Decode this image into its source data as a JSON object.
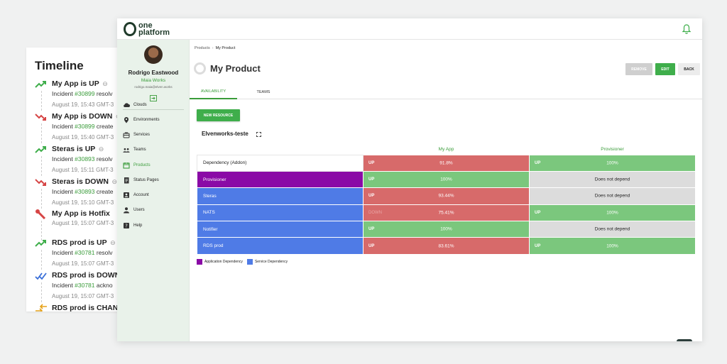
{
  "timeline": {
    "title": "Timeline",
    "items": [
      {
        "title": "My App is UP",
        "incident_prefix": "Incident ",
        "incident": "#30899",
        "incident_suffix": " resolv",
        "date": "August 19, 15:43 GMT-3",
        "kind": "up"
      },
      {
        "title": "My App is DOWN",
        "incident_prefix": "Incident ",
        "incident": "#30899",
        "incident_suffix": " create",
        "date": "August 19, 15:40 GMT-3",
        "kind": "down"
      },
      {
        "title": "Steras is UP",
        "incident_prefix": "Incident ",
        "incident": "#30893",
        "incident_suffix": " resolv",
        "date": "August 19, 15:11 GMT-3",
        "kind": "up"
      },
      {
        "title": "Steras is DOWN",
        "incident_prefix": "Incident ",
        "incident": "#30893",
        "incident_suffix": " create",
        "date": "August 19, 15:10 GMT-3",
        "kind": "down"
      },
      {
        "title": "My App is Hotfix",
        "incident_prefix": "",
        "incident": "",
        "incident_suffix": "",
        "date": "August 19, 15:07 GMT-3",
        "kind": "hotfix"
      },
      {
        "title": "RDS prod is UP",
        "incident_prefix": "Incident ",
        "incident": "#30781",
        "incident_suffix": " resolv",
        "date": "August 19, 15:07 GMT-3",
        "kind": "up"
      },
      {
        "title": "RDS prod is DOWN",
        "incident_prefix": "Incident ",
        "incident": "#30781",
        "incident_suffix": " ackno",
        "date": "August 19, 15:07 GMT-3",
        "kind": "ack"
      },
      {
        "title": "RDS prod is CHANG",
        "incident_prefix": "",
        "incident": "",
        "incident_suffix": "",
        "date": "",
        "kind": "change"
      }
    ]
  },
  "app": {
    "logo_line1": "one",
    "logo_line2": "platform"
  },
  "user": {
    "name": "Rodrigo Eastwood",
    "org": "Maia Works",
    "email": "rodrigo.maia@elven.works"
  },
  "nav": [
    {
      "label": "Clouds",
      "icon": "cloud-icon"
    },
    {
      "label": "Environments",
      "icon": "location-icon"
    },
    {
      "label": "Services",
      "icon": "services-icon"
    },
    {
      "label": "Teams",
      "icon": "people-icon"
    },
    {
      "label": "Products",
      "icon": "calendar-icon",
      "active": true
    },
    {
      "label": "Status Pages",
      "icon": "document-icon"
    },
    {
      "label": "Account",
      "icon": "account-icon"
    },
    {
      "label": "Users",
      "icon": "user-icon"
    },
    {
      "label": "Help",
      "icon": "help-icon"
    }
  ],
  "breadcrumb": {
    "parent": "Products",
    "separator": "›",
    "current": "My Product"
  },
  "product": {
    "title": "My Product"
  },
  "buttons": {
    "remove": "REMOVE",
    "edit": "EDIT",
    "back": "BACK",
    "new_resource": "NEW RESOURCE"
  },
  "tabs": {
    "availability": "AVAILABILITY",
    "teams": "TEAMS"
  },
  "section": {
    "title": "Elvenworks-teste"
  },
  "matrix": {
    "columns": [
      "My App",
      "Provisioner"
    ],
    "rows": [
      {
        "label": "Dependency (Addon)",
        "type": "white",
        "cells": [
          {
            "status": "UP",
            "pct": "91.8%",
            "color": "red"
          },
          {
            "status": "UP",
            "pct": "100%",
            "color": "green"
          }
        ]
      },
      {
        "label": "Provisioner",
        "type": "app",
        "cells": [
          {
            "status": "UP",
            "pct": "100%",
            "color": "green"
          },
          {
            "status": "",
            "pct": "Does not depend",
            "color": "grey"
          }
        ]
      },
      {
        "label": "Steras",
        "type": "svc",
        "cells": [
          {
            "status": "UP",
            "pct": "93.44%",
            "color": "red"
          },
          {
            "status": "",
            "pct": "Does not depend",
            "color": "grey"
          }
        ]
      },
      {
        "label": "NATS",
        "type": "svc",
        "cells": [
          {
            "status": "DOWN",
            "pct": "75.41%",
            "color": "red",
            "dim": true
          },
          {
            "status": "UP",
            "pct": "100%",
            "color": "green"
          }
        ]
      },
      {
        "label": "Notifier",
        "type": "svc",
        "cells": [
          {
            "status": "UP",
            "pct": "100%",
            "color": "green"
          },
          {
            "status": "",
            "pct": "Does not depend",
            "color": "grey"
          }
        ]
      },
      {
        "label": "RDS prod",
        "type": "svc",
        "cells": [
          {
            "status": "UP",
            "pct": "83.61%",
            "color": "red"
          },
          {
            "status": "UP",
            "pct": "100%",
            "color": "green"
          }
        ]
      }
    ]
  },
  "legend": {
    "app": {
      "label": "Application Dependency",
      "color": "#8a0aa6"
    },
    "svc": {
      "label": "Service Dependency",
      "color": "#4f7be6"
    }
  },
  "colors": {
    "accent": "#3fae4b",
    "up_red": "#d76a6a",
    "up_green": "#7bc77d",
    "not_depend": "#dcdcdc"
  }
}
